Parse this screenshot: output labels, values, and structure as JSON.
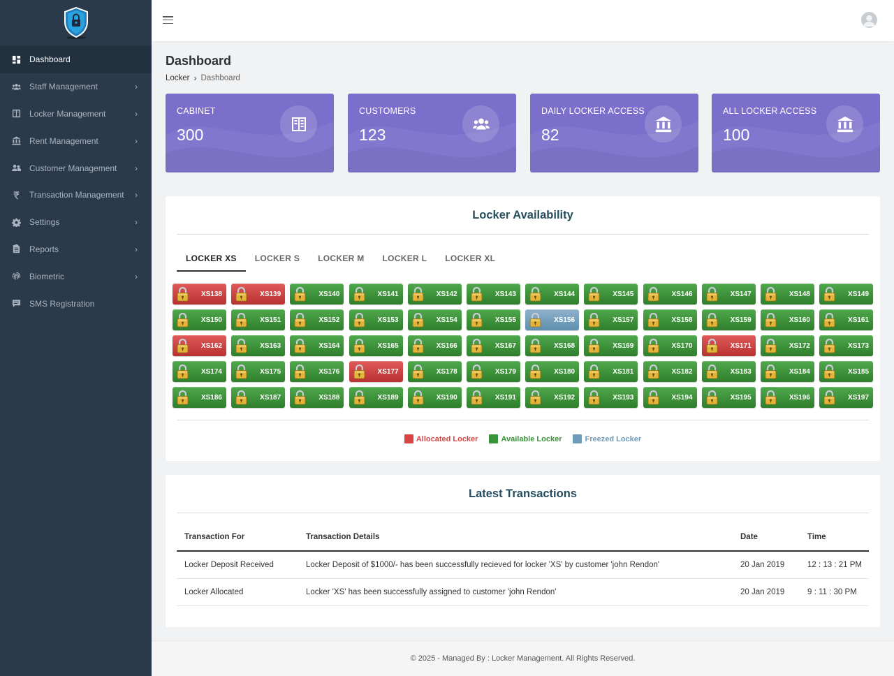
{
  "colors": {
    "sidebar_bg": "#2b3a4a",
    "card_bg": "#7b6fcb",
    "allocated": "#d94545",
    "available": "#3a923a",
    "freezed": "#6f9ab8"
  },
  "sidebar": {
    "items": [
      {
        "label": "Dashboard",
        "icon": "dashboard-icon",
        "active": true,
        "has_children": false
      },
      {
        "label": "Staff Management",
        "icon": "users-icon",
        "active": false,
        "has_children": true
      },
      {
        "label": "Locker Management",
        "icon": "locker-icon",
        "active": false,
        "has_children": true
      },
      {
        "label": "Rent Management",
        "icon": "bank-icon",
        "active": false,
        "has_children": true
      },
      {
        "label": "Customer Management",
        "icon": "user-group-icon",
        "active": false,
        "has_children": true
      },
      {
        "label": "Transaction Management",
        "icon": "rupee-icon",
        "active": false,
        "has_children": true
      },
      {
        "label": "Settings",
        "icon": "gear-icon",
        "active": false,
        "has_children": true
      },
      {
        "label": "Reports",
        "icon": "report-icon",
        "active": false,
        "has_children": true
      },
      {
        "label": "Biometric",
        "icon": "fingerprint-icon",
        "active": false,
        "has_children": true
      },
      {
        "label": "SMS Registration",
        "icon": "message-icon",
        "active": false,
        "has_children": false
      }
    ]
  },
  "page": {
    "title": "Dashboard",
    "breadcrumb": {
      "parent": "Locker",
      "current": "Dashboard"
    }
  },
  "stats": [
    {
      "label": "CABINET",
      "value": "300",
      "icon": "cabinet-icon"
    },
    {
      "label": "CUSTOMERS",
      "value": "123",
      "icon": "users-icon"
    },
    {
      "label": "DAILY LOCKER ACCESS",
      "value": "82",
      "icon": "bank-icon"
    },
    {
      "label": "ALL LOCKER ACCESS",
      "value": "100",
      "icon": "bank-icon"
    }
  ],
  "locker_panel": {
    "title": "Locker Availability",
    "tabs": [
      "LOCKER XS",
      "LOCKER S",
      "LOCKER M",
      "LOCKER L",
      "LOCKER XL"
    ],
    "active_tab": 0,
    "lockers": [
      {
        "id": "XS138",
        "status": "allocated"
      },
      {
        "id": "XS139",
        "status": "allocated"
      },
      {
        "id": "XS140",
        "status": "available"
      },
      {
        "id": "XS141",
        "status": "available"
      },
      {
        "id": "XS142",
        "status": "available"
      },
      {
        "id": "XS143",
        "status": "available"
      },
      {
        "id": "XS144",
        "status": "available"
      },
      {
        "id": "XS145",
        "status": "available"
      },
      {
        "id": "XS146",
        "status": "available"
      },
      {
        "id": "XS147",
        "status": "available"
      },
      {
        "id": "XS148",
        "status": "available"
      },
      {
        "id": "XS149",
        "status": "available"
      },
      {
        "id": "XS150",
        "status": "available"
      },
      {
        "id": "XS151",
        "status": "available"
      },
      {
        "id": "XS152",
        "status": "available"
      },
      {
        "id": "XS153",
        "status": "available"
      },
      {
        "id": "XS154",
        "status": "available"
      },
      {
        "id": "XS155",
        "status": "available"
      },
      {
        "id": "XS156",
        "status": "freezed"
      },
      {
        "id": "XS157",
        "status": "available"
      },
      {
        "id": "XS158",
        "status": "available"
      },
      {
        "id": "XS159",
        "status": "available"
      },
      {
        "id": "XS160",
        "status": "available"
      },
      {
        "id": "XS161",
        "status": "available"
      },
      {
        "id": "XS162",
        "status": "allocated"
      },
      {
        "id": "XS163",
        "status": "available"
      },
      {
        "id": "XS164",
        "status": "available"
      },
      {
        "id": "XS165",
        "status": "available"
      },
      {
        "id": "XS166",
        "status": "available"
      },
      {
        "id": "XS167",
        "status": "available"
      },
      {
        "id": "XS168",
        "status": "available"
      },
      {
        "id": "XS169",
        "status": "available"
      },
      {
        "id": "XS170",
        "status": "available"
      },
      {
        "id": "XS171",
        "status": "allocated"
      },
      {
        "id": "XS172",
        "status": "available"
      },
      {
        "id": "XS173",
        "status": "available"
      },
      {
        "id": "XS174",
        "status": "available"
      },
      {
        "id": "XS175",
        "status": "available"
      },
      {
        "id": "XS176",
        "status": "available"
      },
      {
        "id": "XS177",
        "status": "allocated"
      },
      {
        "id": "XS178",
        "status": "available"
      },
      {
        "id": "XS179",
        "status": "available"
      },
      {
        "id": "XS180",
        "status": "available"
      },
      {
        "id": "XS181",
        "status": "available"
      },
      {
        "id": "XS182",
        "status": "available"
      },
      {
        "id": "XS183",
        "status": "available"
      },
      {
        "id": "XS184",
        "status": "available"
      },
      {
        "id": "XS185",
        "status": "available"
      },
      {
        "id": "XS186",
        "status": "available"
      },
      {
        "id": "XS187",
        "status": "available"
      },
      {
        "id": "XS188",
        "status": "available"
      },
      {
        "id": "XS189",
        "status": "available"
      },
      {
        "id": "XS190",
        "status": "available"
      },
      {
        "id": "XS191",
        "status": "available"
      },
      {
        "id": "XS192",
        "status": "available"
      },
      {
        "id": "XS193",
        "status": "available"
      },
      {
        "id": "XS194",
        "status": "available"
      },
      {
        "id": "XS195",
        "status": "available"
      },
      {
        "id": "XS196",
        "status": "available"
      },
      {
        "id": "XS197",
        "status": "available"
      }
    ],
    "legend": [
      {
        "label": "Allocated Locker",
        "status": "allocated",
        "color": "#d94545"
      },
      {
        "label": "Available Locker",
        "status": "available",
        "color": "#3a923a"
      },
      {
        "label": "Freezed Locker",
        "status": "freezed",
        "color": "#6f9ab8"
      }
    ]
  },
  "transactions": {
    "title": "Latest Transactions",
    "columns": [
      "Transaction For",
      "Transaction Details",
      "Date",
      "Time"
    ],
    "rows": [
      [
        "Locker Deposit Received",
        "Locker Deposit of $1000/- has been successfully recieved for locker 'XS' by customer 'john Rendon'",
        "20 Jan 2019",
        "12 : 13 : 21 PM"
      ],
      [
        "Locker Allocated",
        "Locker 'XS' has been successfully assigned to customer 'john Rendon'",
        "20 Jan 2019",
        "9 : 11 : 30 PM"
      ]
    ]
  },
  "footer": {
    "text": "© 2025 - Managed By : Locker Management. All Rights Reserved."
  }
}
